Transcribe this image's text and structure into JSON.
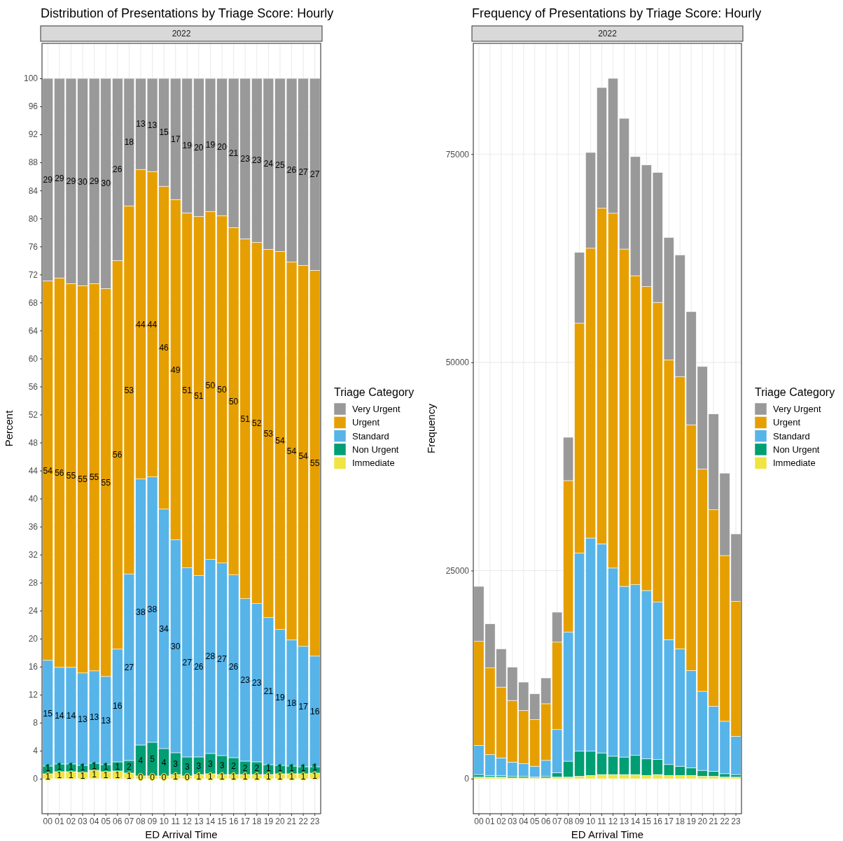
{
  "chart_data": [
    {
      "type": "bar",
      "title": "Distribution of Presentations by Triage Score: Hourly",
      "subtitle": "2022",
      "xlabel": "ED Arrival Time",
      "ylabel": "Percent",
      "legend_title": "Triage Category",
      "legend": "right",
      "stacked": true,
      "grid": true,
      "categories": [
        "00",
        "01",
        "02",
        "03",
        "04",
        "05",
        "06",
        "07",
        "08",
        "09",
        "10",
        "11",
        "12",
        "13",
        "14",
        "15",
        "16",
        "17",
        "18",
        "19",
        "20",
        "21",
        "22",
        "23"
      ],
      "ylim": [
        -5,
        105
      ],
      "yticks": [
        0,
        4,
        8,
        12,
        16,
        20,
        24,
        28,
        32,
        36,
        40,
        44,
        48,
        52,
        56,
        60,
        64,
        68,
        72,
        76,
        80,
        84,
        88,
        92,
        96,
        100
      ],
      "series": [
        {
          "name": "Immediate",
          "color": "#f0e442",
          "values": [
            0.7,
            1.0,
            1.0,
            0.9,
            1.2,
            1.0,
            1.1,
            0.8,
            0.4,
            0.4,
            0.4,
            0.6,
            0.4,
            0.6,
            0.7,
            0.6,
            0.6,
            0.6,
            0.6,
            0.6,
            0.7,
            0.7,
            0.7,
            0.8
          ],
          "value_labels": [
            "1",
            "1",
            "1",
            "1",
            "1",
            "1",
            "1",
            "1",
            "0",
            "0",
            "0",
            "1",
            "0",
            "1",
            "1",
            "1",
            "1",
            "1",
            "1",
            "1",
            "1",
            "1",
            "1",
            "1"
          ]
        },
        {
          "name": "Non Urgent",
          "color": "#009e73",
          "values": [
            1.1,
            1.1,
            1.1,
            1.0,
            1.0,
            1.0,
            1.3,
            1.8,
            4.4,
            4.8,
            3.9,
            3.1,
            2.7,
            2.5,
            2.9,
            2.7,
            2.4,
            1.9,
            1.8,
            1.4,
            1.2,
            1.1,
            1.0,
            0.9
          ],
          "value_labels": [
            "1",
            "1",
            "1",
            "1",
            "1",
            "1",
            "1",
            "2",
            "4",
            "5",
            "4",
            "3",
            "3",
            "3",
            "3",
            "3",
            "2",
            "2",
            "2",
            "1",
            "1",
            "1",
            "1",
            "1"
          ]
        },
        {
          "name": "Standard",
          "color": "#56b4e9",
          "values": [
            15.1,
            13.8,
            13.8,
            13.2,
            13.2,
            12.6,
            16.1,
            26.6,
            38.0,
            37.9,
            34.2,
            30.4,
            27.0,
            25.9,
            27.7,
            27.5,
            26.1,
            23.2,
            22.6,
            21.0,
            19.4,
            18.0,
            17.2,
            15.8
          ],
          "value_labels": [
            "15",
            "14",
            "14",
            "13",
            "13",
            "13",
            "16",
            "27",
            "38",
            "38",
            "34",
            "30",
            "27",
            "26",
            "28",
            "27",
            "26",
            "23",
            "23",
            "21",
            "19",
            "18",
            "17",
            "16"
          ]
        },
        {
          "name": "Urgent",
          "color": "#e69f00",
          "values": [
            54.2,
            55.6,
            54.8,
            55.3,
            55.3,
            55.4,
            55.5,
            52.6,
            44.2,
            43.6,
            46.1,
            48.6,
            50.7,
            51.3,
            49.7,
            49.6,
            49.6,
            51.4,
            51.6,
            52.6,
            54.0,
            54.0,
            54.4,
            55.1
          ],
          "value_labels": [
            "54",
            "56",
            "55",
            "55",
            "55",
            "55",
            "56",
            "53",
            "44",
            "44",
            "46",
            "49",
            "51",
            "51",
            "50",
            "50",
            "50",
            "51",
            "52",
            "53",
            "54",
            "54",
            "54",
            "55"
          ]
        },
        {
          "name": "Very Urgent",
          "color": "#999999",
          "values": [
            28.9,
            28.5,
            29.3,
            29.6,
            29.3,
            30.0,
            26.0,
            18.2,
            13.0,
            13.3,
            15.4,
            17.3,
            19.2,
            19.7,
            19.0,
            19.6,
            21.3,
            22.9,
            23.4,
            24.4,
            24.7,
            26.2,
            26.7,
            27.4
          ],
          "value_labels": [
            "29",
            "29",
            "29",
            "30",
            "29",
            "30",
            "26",
            "18",
            "13",
            "13",
            "15",
            "17",
            "19",
            "20",
            "19",
            "20",
            "21",
            "23",
            "23",
            "24",
            "25",
            "26",
            "27",
            "27"
          ]
        }
      ]
    },
    {
      "type": "bar",
      "title": "Frequency of Presentations by Triage Score: Hourly",
      "subtitle": "2022",
      "xlabel": "ED Arrival Time",
      "ylabel": "Frequency",
      "legend_title": "Triage Category",
      "legend": "right",
      "stacked": true,
      "grid": true,
      "categories": [
        "00",
        "01",
        "02",
        "03",
        "04",
        "05",
        "06",
        "07",
        "08",
        "09",
        "10",
        "11",
        "12",
        "13",
        "14",
        "15",
        "16",
        "17",
        "18",
        "19",
        "20",
        "21",
        "22",
        "23"
      ],
      "ylim": [
        -4200,
        88300
      ],
      "yticks": [
        0,
        25000,
        50000,
        75000
      ],
      "series": [
        {
          "name": "Immediate",
          "color": "#f0e442",
          "values": [
            200,
            200,
            200,
            100,
            100,
            100,
            100,
            200,
            200,
            300,
            400,
            500,
            500,
            500,
            500,
            400,
            500,
            400,
            400,
            400,
            300,
            300,
            200,
            200
          ]
        },
        {
          "name": "Non Urgent",
          "color": "#009e73",
          "values": [
            300,
            200,
            200,
            200,
            200,
            100,
            200,
            500,
            1900,
            3000,
            2900,
            2600,
            2200,
            2100,
            2300,
            2000,
            1800,
            1300,
            1100,
            900,
            700,
            600,
            400,
            300
          ]
        },
        {
          "name": "Standard",
          "color": "#56b4e9",
          "values": [
            3500,
            2500,
            2100,
            1700,
            1500,
            1300,
            1900,
            5200,
            15500,
            23800,
            25600,
            25100,
            22600,
            20500,
            20500,
            20200,
            18900,
            15000,
            14100,
            11700,
            9500,
            7800,
            6300,
            4600
          ]
        },
        {
          "name": "Urgent",
          "color": "#e69f00",
          "values": [
            12500,
            10400,
            8500,
            7400,
            6400,
            5600,
            6800,
            10500,
            18200,
            27600,
            34800,
            40300,
            42600,
            40500,
            37100,
            36500,
            36000,
            33600,
            32700,
            29500,
            26700,
            23600,
            19900,
            16200
          ]
        },
        {
          "name": "Very Urgent",
          "color": "#999999",
          "values": [
            6600,
            5300,
            4600,
            4000,
            3400,
            3100,
            3100,
            3600,
            5200,
            8500,
            11500,
            14500,
            16200,
            15700,
            14300,
            14600,
            15600,
            14700,
            14600,
            13600,
            12300,
            11500,
            9900,
            8100
          ]
        }
      ]
    }
  ]
}
